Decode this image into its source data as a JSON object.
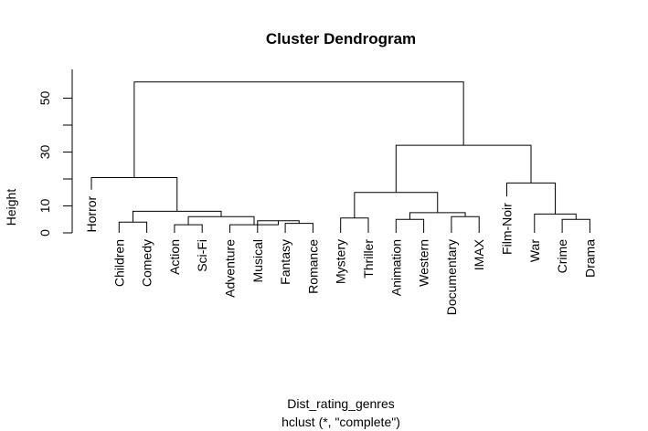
{
  "chart_data": {
    "type": "dendrogram",
    "title": "Cluster Dendrogram",
    "ylabel": "Height",
    "xlabel": "Dist_rating_genres",
    "sublabel": "hclust (*, \"complete\")",
    "ylim": [
      0,
      60
    ],
    "yticks": [
      0,
      10,
      30,
      50
    ],
    "yticks_minor": [
      20,
      40
    ],
    "leaves": [
      {
        "label": "Horror",
        "height": 16
      },
      {
        "label": "Children",
        "height": 0
      },
      {
        "label": "Comedy",
        "height": 0
      },
      {
        "label": "Action",
        "height": 0
      },
      {
        "label": "Sci-Fi",
        "height": 0
      },
      {
        "label": "Adventure",
        "height": 0
      },
      {
        "label": "Musical",
        "height": 0
      },
      {
        "label": "Fantasy",
        "height": 0
      },
      {
        "label": "Romance",
        "height": 0
      },
      {
        "label": "Mystery",
        "height": 0
      },
      {
        "label": "Thriller",
        "height": 0
      },
      {
        "label": "Animation",
        "height": 0
      },
      {
        "label": "Western",
        "height": 0
      },
      {
        "label": "Documentary",
        "height": 0
      },
      {
        "label": "IMAX",
        "height": 0
      },
      {
        "label": "Film-Noir",
        "height": 13.5
      },
      {
        "label": "War",
        "height": 0
      },
      {
        "label": "Crime",
        "height": 0
      },
      {
        "label": "Drama",
        "height": 0
      }
    ],
    "merges": [
      {
        "left": 1,
        "right": 2,
        "height": 4
      },
      {
        "left": 3,
        "right": 4,
        "height": 3
      },
      {
        "left": 7,
        "right": 8,
        "height": 3.5
      },
      {
        "left": 6,
        "right": "m3",
        "height": 4.5
      },
      {
        "left": 5,
        "right": "m4",
        "height": 3
      },
      {
        "left": "m2",
        "right": "m5",
        "height": 6
      },
      {
        "left": "m1",
        "right": "m6",
        "height": 8
      },
      {
        "left": 0,
        "right": "m7",
        "height": 20.5
      },
      {
        "left": 9,
        "right": 10,
        "height": 5.5
      },
      {
        "left": 11,
        "right": 12,
        "height": 5
      },
      {
        "left": 13,
        "right": 14,
        "height": 6
      },
      {
        "left": "m10",
        "right": "m11",
        "height": 7.5
      },
      {
        "left": "m9",
        "right": "m12",
        "height": 15
      },
      {
        "left": 17,
        "right": 18,
        "height": 5
      },
      {
        "left": 16,
        "right": "m14",
        "height": 7
      },
      {
        "left": 15,
        "right": "m15",
        "height": 18.5
      },
      {
        "left": "m13",
        "right": "m16",
        "height": 32.5
      },
      {
        "left": "m8",
        "right": "m17",
        "height": 56
      }
    ]
  }
}
